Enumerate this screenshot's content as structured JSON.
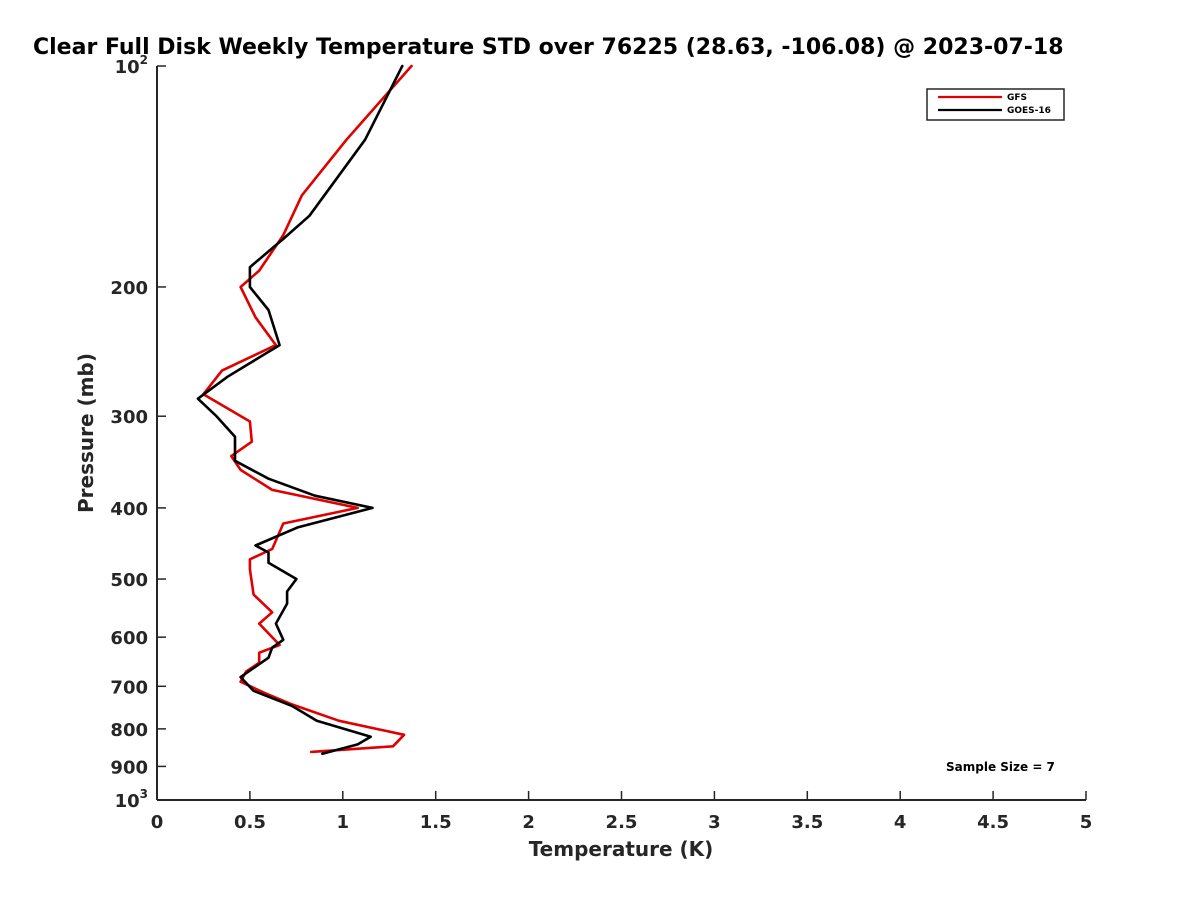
{
  "chart_data": {
    "type": "line",
    "title": "Clear Full Disk Weekly Temperature STD over 76225 (28.63, -106.08) @ 2023-07-18",
    "xlabel": "Temperature (K)",
    "ylabel": "Pressure (mb)",
    "xlim": [
      0,
      5
    ],
    "ylim": [
      100,
      1000
    ],
    "y_scale": "log",
    "y_reversed": true,
    "grid": false,
    "legend_position": "top-right",
    "x_ticks": [
      "0",
      "0.5",
      "1",
      "1.5",
      "2",
      "2.5",
      "3",
      "3.5",
      "4",
      "4.5",
      "5"
    ],
    "y_ticks": [
      {
        "value": 100,
        "label": "10",
        "sup": "2"
      },
      {
        "value": 200,
        "label": "200"
      },
      {
        "value": 300,
        "label": "300"
      },
      {
        "value": 400,
        "label": "400"
      },
      {
        "value": 500,
        "label": "500"
      },
      {
        "value": 600,
        "label": "600"
      },
      {
        "value": 700,
        "label": "700"
      },
      {
        "value": 800,
        "label": "800"
      },
      {
        "value": 900,
        "label": "900"
      },
      {
        "value": 1000,
        "label": "10",
        "sup": "3"
      }
    ],
    "annotation": "Sample Size = 7",
    "series": [
      {
        "name": "GFS",
        "color": "#e00000",
        "points": [
          [
            1.37,
            100
          ],
          [
            1.02,
            126
          ],
          [
            0.78,
            150
          ],
          [
            0.68,
            170
          ],
          [
            0.55,
            190
          ],
          [
            0.45,
            200
          ],
          [
            0.53,
            220
          ],
          [
            0.64,
            240
          ],
          [
            0.35,
            260
          ],
          [
            0.25,
            280
          ],
          [
            0.5,
            305
          ],
          [
            0.51,
            325
          ],
          [
            0.4,
            340
          ],
          [
            0.45,
            355
          ],
          [
            0.62,
            378
          ],
          [
            1.08,
            400
          ],
          [
            0.68,
            420
          ],
          [
            0.62,
            455
          ],
          [
            0.5,
            470
          ],
          [
            0.5,
            485
          ],
          [
            0.52,
            525
          ],
          [
            0.62,
            555
          ],
          [
            0.55,
            575
          ],
          [
            0.66,
            615
          ],
          [
            0.55,
            630
          ],
          [
            0.55,
            650
          ],
          [
            0.48,
            668
          ],
          [
            0.45,
            690
          ],
          [
            0.58,
            715
          ],
          [
            0.72,
            740
          ],
          [
            0.98,
            780
          ],
          [
            1.33,
            815
          ],
          [
            1.27,
            845
          ],
          [
            0.83,
            860
          ]
        ]
      },
      {
        "name": "GOES-16",
        "color": "#000000",
        "points": [
          [
            1.32,
            100
          ],
          [
            1.12,
            126
          ],
          [
            0.82,
            160
          ],
          [
            0.68,
            172
          ],
          [
            0.5,
            188
          ],
          [
            0.5,
            200
          ],
          [
            0.6,
            215
          ],
          [
            0.66,
            240
          ],
          [
            0.38,
            265
          ],
          [
            0.22,
            284
          ],
          [
            0.32,
            300
          ],
          [
            0.42,
            320
          ],
          [
            0.42,
            330
          ],
          [
            0.42,
            345
          ],
          [
            0.6,
            365
          ],
          [
            0.85,
            385
          ],
          [
            1.16,
            400
          ],
          [
            0.76,
            425
          ],
          [
            0.53,
            450
          ],
          [
            0.6,
            460
          ],
          [
            0.6,
            475
          ],
          [
            0.75,
            500
          ],
          [
            0.7,
            520
          ],
          [
            0.7,
            540
          ],
          [
            0.64,
            575
          ],
          [
            0.68,
            605
          ],
          [
            0.62,
            620
          ],
          [
            0.6,
            640
          ],
          [
            0.45,
            680
          ],
          [
            0.52,
            710
          ],
          [
            0.73,
            745
          ],
          [
            0.86,
            780
          ],
          [
            1.15,
            820
          ],
          [
            1.08,
            840
          ],
          [
            0.89,
            865
          ]
        ]
      }
    ]
  }
}
